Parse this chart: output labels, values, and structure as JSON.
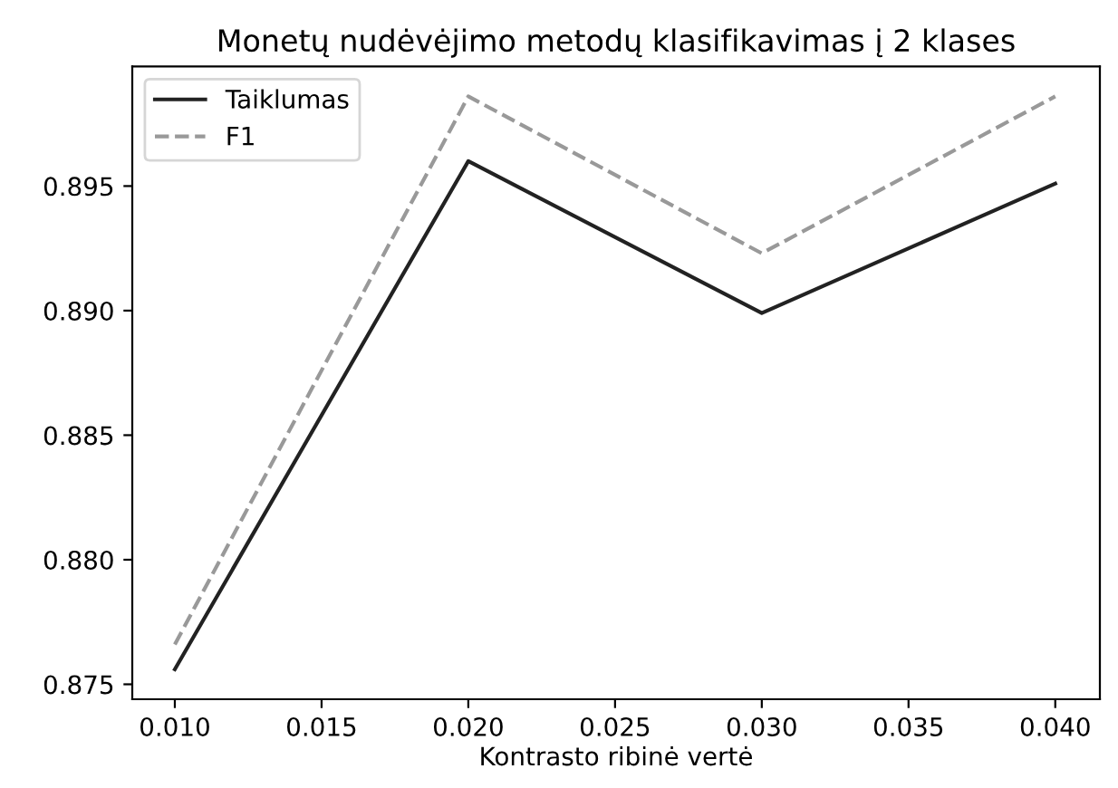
{
  "chart_data": {
    "type": "line",
    "title": "Monetų nudėvėjimo metodų klasifikavimas į 2 klases",
    "xlabel": "Kontrasto ribinė vertė",
    "x": [
      0.01,
      0.02,
      0.03,
      0.04
    ],
    "series": [
      {
        "name": "Taiklumas",
        "color": "#222222",
        "values": [
          0.8756,
          0.896,
          0.8899,
          0.8951
        ],
        "line_style": "solid"
      },
      {
        "name": "F1",
        "color": "#999999",
        "values": [
          0.8766,
          0.8986,
          0.8923,
          0.8986
        ],
        "line_style": "dashed"
      }
    ],
    "xlim": [
      0.00855,
      0.04152
    ],
    "ylim": [
      0.8744,
      0.8998
    ],
    "xticks": [
      {
        "value": 0.01,
        "label": "0.010"
      },
      {
        "value": 0.015,
        "label": "0.015"
      },
      {
        "value": 0.02,
        "label": "0.020"
      },
      {
        "value": 0.025,
        "label": "0.025"
      },
      {
        "value": 0.03,
        "label": "0.030"
      },
      {
        "value": 0.035,
        "label": "0.035"
      },
      {
        "value": 0.04,
        "label": "0.040"
      }
    ],
    "yticks": [
      {
        "value": 0.875,
        "label": "0.875"
      },
      {
        "value": 0.88,
        "label": "0.880"
      },
      {
        "value": 0.885,
        "label": "0.885"
      },
      {
        "value": 0.89,
        "label": "0.890"
      },
      {
        "value": 0.895,
        "label": "0.895"
      }
    ],
    "legend": "top left",
    "grid": false
  }
}
